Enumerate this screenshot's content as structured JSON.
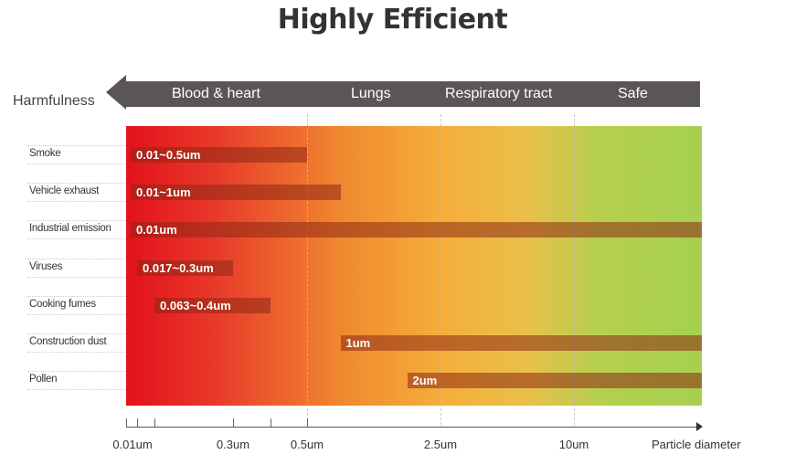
{
  "chart_data": {
    "type": "bar",
    "title": "Highly Efficient",
    "ylabel": "Harmfulness",
    "xlabel": "Particle diameter",
    "zones": [
      "Blood & heart",
      "Lungs",
      "Respiratory tract",
      "Safe"
    ],
    "x_ticks": [
      {
        "value": 0.01,
        "label": "0.01um"
      },
      {
        "value": 0.017,
        "label": ""
      },
      {
        "value": 0.063,
        "label": ""
      },
      {
        "value": 0.3,
        "label": "0.3um"
      },
      {
        "value": 0.4,
        "label": ""
      },
      {
        "value": 0.5,
        "label": "0.5um"
      },
      {
        "value": 2.5,
        "label": "2.5um"
      },
      {
        "value": 10,
        "label": "10um"
      }
    ],
    "gridlines": [
      0.5,
      2.5,
      10
    ],
    "categories": [
      "Smoke",
      "Vehicle exhaust",
      "Industrial emission",
      "Viruses",
      "Cooking fumes",
      "Construction dust",
      "Pollen"
    ],
    "bars": [
      {
        "name": "Smoke",
        "min": 0.01,
        "max": 0.5,
        "label": "0.01~0.5um"
      },
      {
        "name": "Vehicle exhaust",
        "min": 0.01,
        "max": 1,
        "label": "0.01~1um"
      },
      {
        "name": "Industrial emission",
        "min": 0.01,
        "max": null,
        "label": "0.01um"
      },
      {
        "name": "Viruses",
        "min": 0.017,
        "max": 0.3,
        "label": "0.017~0.3um"
      },
      {
        "name": "Cooking fumes",
        "min": 0.063,
        "max": 0.4,
        "label": "0.063~0.4um"
      },
      {
        "name": "Construction dust",
        "min": 1,
        "max": null,
        "label": "1um"
      },
      {
        "name": "Pollen",
        "min": 2,
        "max": null,
        "label": "2um"
      }
    ],
    "colors": {
      "harmful": "#e3121b",
      "moderate": "#f5ae3a",
      "safe": "#a6d050",
      "arrow": "#5a5655"
    }
  }
}
